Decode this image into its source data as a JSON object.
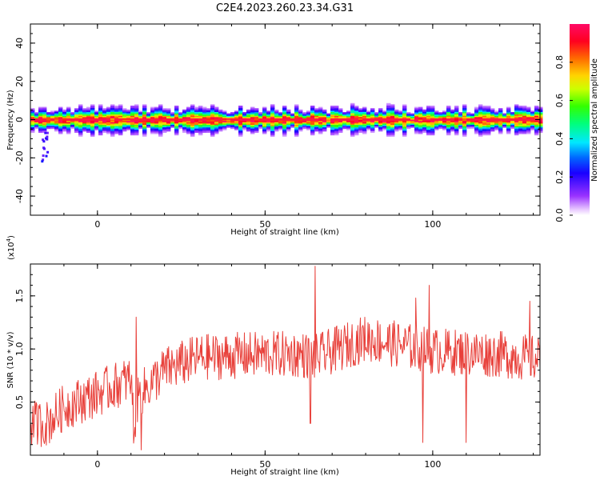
{
  "figure": {
    "title": "C2E4.2023.260.23.34.G31"
  },
  "chart_data": [
    {
      "type": "heatmap",
      "xlabel": "Height of straight line (km)",
      "ylabel": "Frequency (Hz)",
      "xlim": [
        -20,
        132
      ],
      "ylim": [
        -50,
        50
      ],
      "x_ticks": [
        "0",
        "50",
        "100"
      ],
      "y_ticks": [
        "40",
        "20",
        "0",
        "-20",
        "-40"
      ],
      "x_tick_values": [
        0,
        50,
        100
      ],
      "y_tick_values": [
        40,
        20,
        0,
        -20,
        -40
      ],
      "colorbar": {
        "label": "Normalized spectral amplitude",
        "ticks": [
          "0.0",
          "0.2",
          "0.4",
          "0.6",
          "0.8"
        ],
        "tick_values": [
          0.0,
          0.2,
          0.4,
          0.6,
          0.8
        ],
        "range": [
          0,
          1
        ],
        "colormap": "gist_rainbow_r"
      },
      "band": {
        "center_frequency_hz": 0,
        "typical_halfwidth_hz": 3,
        "max_halfwidth_hz": 8,
        "outlier": {
          "x_range": [
            -17,
            -15
          ],
          "y_range": [
            -22,
            -5
          ]
        }
      },
      "grid": false
    },
    {
      "type": "line",
      "xlabel": "Height of straight line (km)",
      "ylabel": "SNR (10 * v/v)",
      "multiplier_label": "(x10",
      "multiplier_exp": "4",
      "multiplier_close": ")",
      "xlim": [
        -20,
        132
      ],
      "ylim": [
        0.0,
        1.8
      ],
      "x_ticks": [
        "0",
        "50",
        "100"
      ],
      "y_ticks": [
        "0.5",
        "1.0",
        "1.5"
      ],
      "x_tick_values": [
        0,
        50,
        100
      ],
      "y_tick_values": [
        0.5,
        1.0,
        1.5
      ],
      "series": [
        {
          "color": "#e8403a",
          "trend_x": [
            -20,
            -15,
            -10,
            0,
            10,
            11,
            12,
            20,
            30,
            50,
            60,
            65,
            80,
            100,
            120,
            132
          ],
          "trend_y": [
            0.3,
            0.3,
            0.45,
            0.58,
            0.72,
            0.2,
            0.55,
            0.8,
            0.92,
            0.95,
            0.95,
            0.92,
            1.1,
            0.98,
            0.95,
            0.9
          ],
          "noise_amplitude": 0.22,
          "samples": 800,
          "spikes": [
            {
              "x": 11.5,
              "y": 1.3
            },
            {
              "x": 65.0,
              "y": 1.78
            },
            {
              "x": 99.0,
              "y": 1.6
            },
            {
              "x": 95.0,
              "y": 1.48
            },
            {
              "x": 129.0,
              "y": 1.45
            }
          ],
          "dips": [
            {
              "x": 13.0,
              "y": 0.05
            },
            {
              "x": 63.5,
              "y": 0.3
            },
            {
              "x": 97.0,
              "y": 0.12
            },
            {
              "x": 110.0,
              "y": 0.12
            }
          ]
        }
      ],
      "grid": false
    }
  ]
}
